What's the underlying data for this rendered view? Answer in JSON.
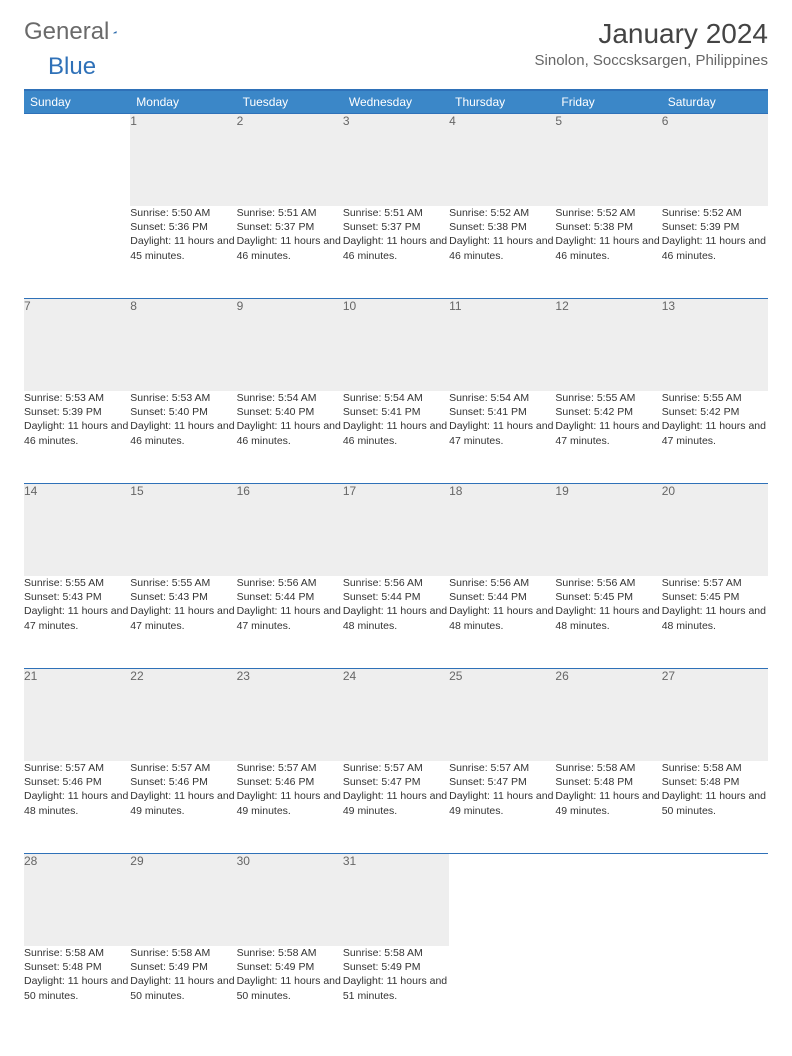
{
  "logo": {
    "part1": "General",
    "part2": "Blue"
  },
  "title": "January 2024",
  "location": "Sinolon, Soccsksargen, Philippines",
  "colors": {
    "header_bg": "#3b87c8",
    "accent": "#2f71b8",
    "daynum_bg": "#eeeeee",
    "text": "#333333",
    "muted": "#666666"
  },
  "weekdays": [
    "Sunday",
    "Monday",
    "Tuesday",
    "Wednesday",
    "Thursday",
    "Friday",
    "Saturday"
  ],
  "weeks": [
    [
      null,
      {
        "n": "1",
        "sr": "Sunrise: 5:50 AM",
        "ss": "Sunset: 5:36 PM",
        "dl": "Daylight: 11 hours and 45 minutes."
      },
      {
        "n": "2",
        "sr": "Sunrise: 5:51 AM",
        "ss": "Sunset: 5:37 PM",
        "dl": "Daylight: 11 hours and 46 minutes."
      },
      {
        "n": "3",
        "sr": "Sunrise: 5:51 AM",
        "ss": "Sunset: 5:37 PM",
        "dl": "Daylight: 11 hours and 46 minutes."
      },
      {
        "n": "4",
        "sr": "Sunrise: 5:52 AM",
        "ss": "Sunset: 5:38 PM",
        "dl": "Daylight: 11 hours and 46 minutes."
      },
      {
        "n": "5",
        "sr": "Sunrise: 5:52 AM",
        "ss": "Sunset: 5:38 PM",
        "dl": "Daylight: 11 hours and 46 minutes."
      },
      {
        "n": "6",
        "sr": "Sunrise: 5:52 AM",
        "ss": "Sunset: 5:39 PM",
        "dl": "Daylight: 11 hours and 46 minutes."
      }
    ],
    [
      {
        "n": "7",
        "sr": "Sunrise: 5:53 AM",
        "ss": "Sunset: 5:39 PM",
        "dl": "Daylight: 11 hours and 46 minutes."
      },
      {
        "n": "8",
        "sr": "Sunrise: 5:53 AM",
        "ss": "Sunset: 5:40 PM",
        "dl": "Daylight: 11 hours and 46 minutes."
      },
      {
        "n": "9",
        "sr": "Sunrise: 5:54 AM",
        "ss": "Sunset: 5:40 PM",
        "dl": "Daylight: 11 hours and 46 minutes."
      },
      {
        "n": "10",
        "sr": "Sunrise: 5:54 AM",
        "ss": "Sunset: 5:41 PM",
        "dl": "Daylight: 11 hours and 46 minutes."
      },
      {
        "n": "11",
        "sr": "Sunrise: 5:54 AM",
        "ss": "Sunset: 5:41 PM",
        "dl": "Daylight: 11 hours and 47 minutes."
      },
      {
        "n": "12",
        "sr": "Sunrise: 5:55 AM",
        "ss": "Sunset: 5:42 PM",
        "dl": "Daylight: 11 hours and 47 minutes."
      },
      {
        "n": "13",
        "sr": "Sunrise: 5:55 AM",
        "ss": "Sunset: 5:42 PM",
        "dl": "Daylight: 11 hours and 47 minutes."
      }
    ],
    [
      {
        "n": "14",
        "sr": "Sunrise: 5:55 AM",
        "ss": "Sunset: 5:43 PM",
        "dl": "Daylight: 11 hours and 47 minutes."
      },
      {
        "n": "15",
        "sr": "Sunrise: 5:55 AM",
        "ss": "Sunset: 5:43 PM",
        "dl": "Daylight: 11 hours and 47 minutes."
      },
      {
        "n": "16",
        "sr": "Sunrise: 5:56 AM",
        "ss": "Sunset: 5:44 PM",
        "dl": "Daylight: 11 hours and 47 minutes."
      },
      {
        "n": "17",
        "sr": "Sunrise: 5:56 AM",
        "ss": "Sunset: 5:44 PM",
        "dl": "Daylight: 11 hours and 48 minutes."
      },
      {
        "n": "18",
        "sr": "Sunrise: 5:56 AM",
        "ss": "Sunset: 5:44 PM",
        "dl": "Daylight: 11 hours and 48 minutes."
      },
      {
        "n": "19",
        "sr": "Sunrise: 5:56 AM",
        "ss": "Sunset: 5:45 PM",
        "dl": "Daylight: 11 hours and 48 minutes."
      },
      {
        "n": "20",
        "sr": "Sunrise: 5:57 AM",
        "ss": "Sunset: 5:45 PM",
        "dl": "Daylight: 11 hours and 48 minutes."
      }
    ],
    [
      {
        "n": "21",
        "sr": "Sunrise: 5:57 AM",
        "ss": "Sunset: 5:46 PM",
        "dl": "Daylight: 11 hours and 48 minutes."
      },
      {
        "n": "22",
        "sr": "Sunrise: 5:57 AM",
        "ss": "Sunset: 5:46 PM",
        "dl": "Daylight: 11 hours and 49 minutes."
      },
      {
        "n": "23",
        "sr": "Sunrise: 5:57 AM",
        "ss": "Sunset: 5:46 PM",
        "dl": "Daylight: 11 hours and 49 minutes."
      },
      {
        "n": "24",
        "sr": "Sunrise: 5:57 AM",
        "ss": "Sunset: 5:47 PM",
        "dl": "Daylight: 11 hours and 49 minutes."
      },
      {
        "n": "25",
        "sr": "Sunrise: 5:57 AM",
        "ss": "Sunset: 5:47 PM",
        "dl": "Daylight: 11 hours and 49 minutes."
      },
      {
        "n": "26",
        "sr": "Sunrise: 5:58 AM",
        "ss": "Sunset: 5:48 PM",
        "dl": "Daylight: 11 hours and 49 minutes."
      },
      {
        "n": "27",
        "sr": "Sunrise: 5:58 AM",
        "ss": "Sunset: 5:48 PM",
        "dl": "Daylight: 11 hours and 50 minutes."
      }
    ],
    [
      {
        "n": "28",
        "sr": "Sunrise: 5:58 AM",
        "ss": "Sunset: 5:48 PM",
        "dl": "Daylight: 11 hours and 50 minutes."
      },
      {
        "n": "29",
        "sr": "Sunrise: 5:58 AM",
        "ss": "Sunset: 5:49 PM",
        "dl": "Daylight: 11 hours and 50 minutes."
      },
      {
        "n": "30",
        "sr": "Sunrise: 5:58 AM",
        "ss": "Sunset: 5:49 PM",
        "dl": "Daylight: 11 hours and 50 minutes."
      },
      {
        "n": "31",
        "sr": "Sunrise: 5:58 AM",
        "ss": "Sunset: 5:49 PM",
        "dl": "Daylight: 11 hours and 51 minutes."
      },
      null,
      null,
      null
    ]
  ]
}
